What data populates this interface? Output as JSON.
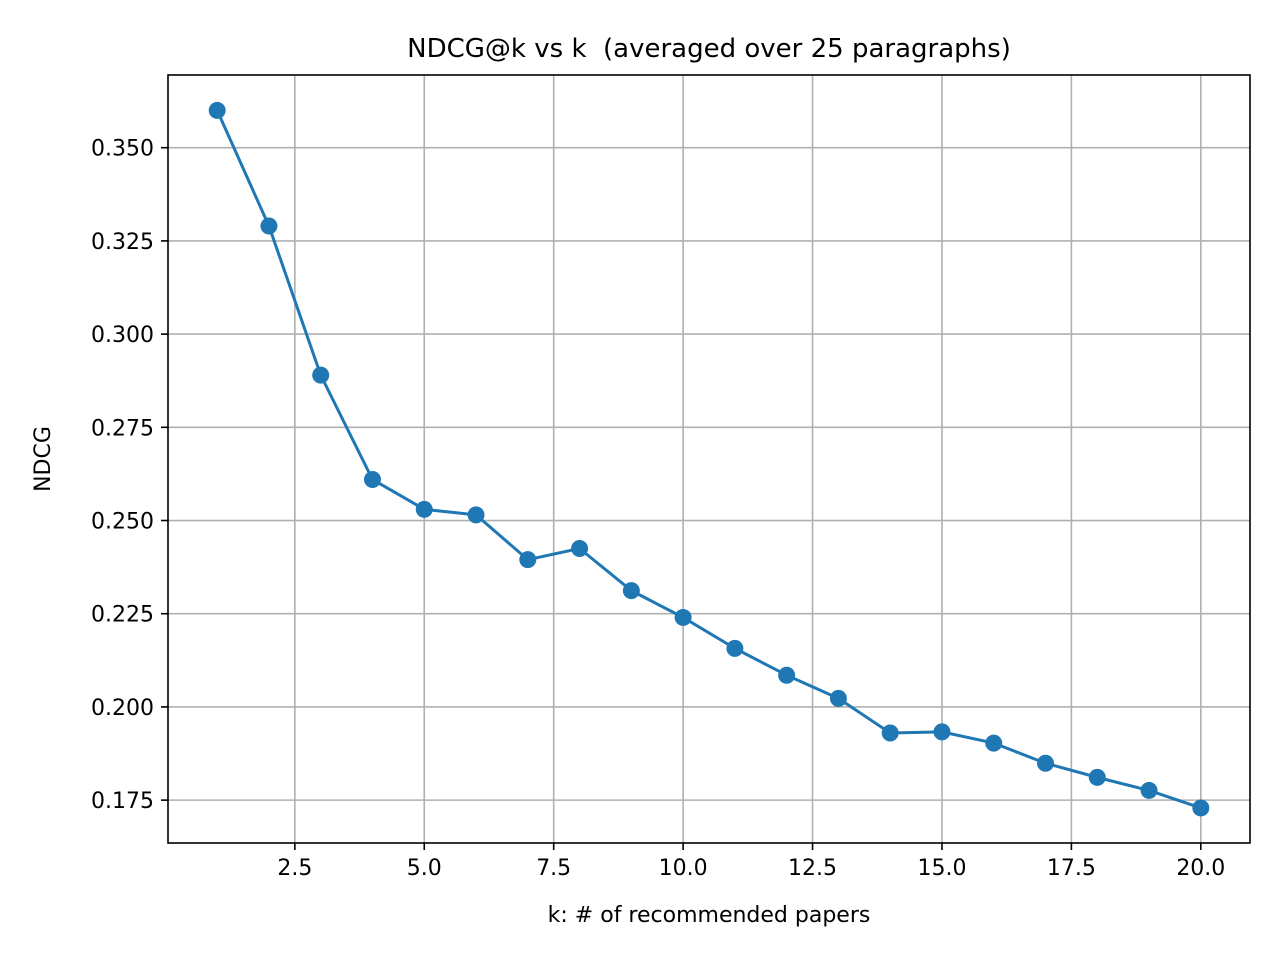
{
  "chart_data": {
    "type": "line",
    "title": "NDCG@k vs k  (averaged over 25 paragraphs)",
    "xlabel": "k: # of recommended papers",
    "ylabel": "NDCG",
    "x": [
      1,
      2,
      3,
      4,
      5,
      6,
      7,
      8,
      9,
      10,
      11,
      12,
      13,
      14,
      15,
      16,
      17,
      18,
      19,
      20
    ],
    "series": [
      {
        "values": [
          0.36,
          0.329,
          0.289,
          0.261,
          0.253,
          0.2515,
          0.2395,
          0.2425,
          0.2312,
          0.224,
          0.2157,
          0.2085,
          0.2023,
          0.193,
          0.1933,
          0.1903,
          0.1849,
          0.1811,
          0.1776,
          0.1729
        ],
        "color": "#1f77b4",
        "marker": "circle"
      }
    ],
    "xlim": [
      0.05,
      20.95
    ],
    "ylim": [
      0.1635,
      0.3695
    ],
    "xticks": [
      2.5,
      5.0,
      7.5,
      10.0,
      12.5,
      15.0,
      17.5,
      20.0
    ],
    "xtick_labels": [
      "2.5",
      "5.0",
      "7.5",
      "10.0",
      "12.5",
      "15.0",
      "17.5",
      "20.0"
    ],
    "yticks": [
      0.175,
      0.2,
      0.225,
      0.25,
      0.275,
      0.3,
      0.325,
      0.35
    ],
    "ytick_labels": [
      "0.175",
      "0.200",
      "0.225",
      "0.250",
      "0.275",
      "0.300",
      "0.325",
      "0.350"
    ],
    "grid": true,
    "legend": "none"
  }
}
